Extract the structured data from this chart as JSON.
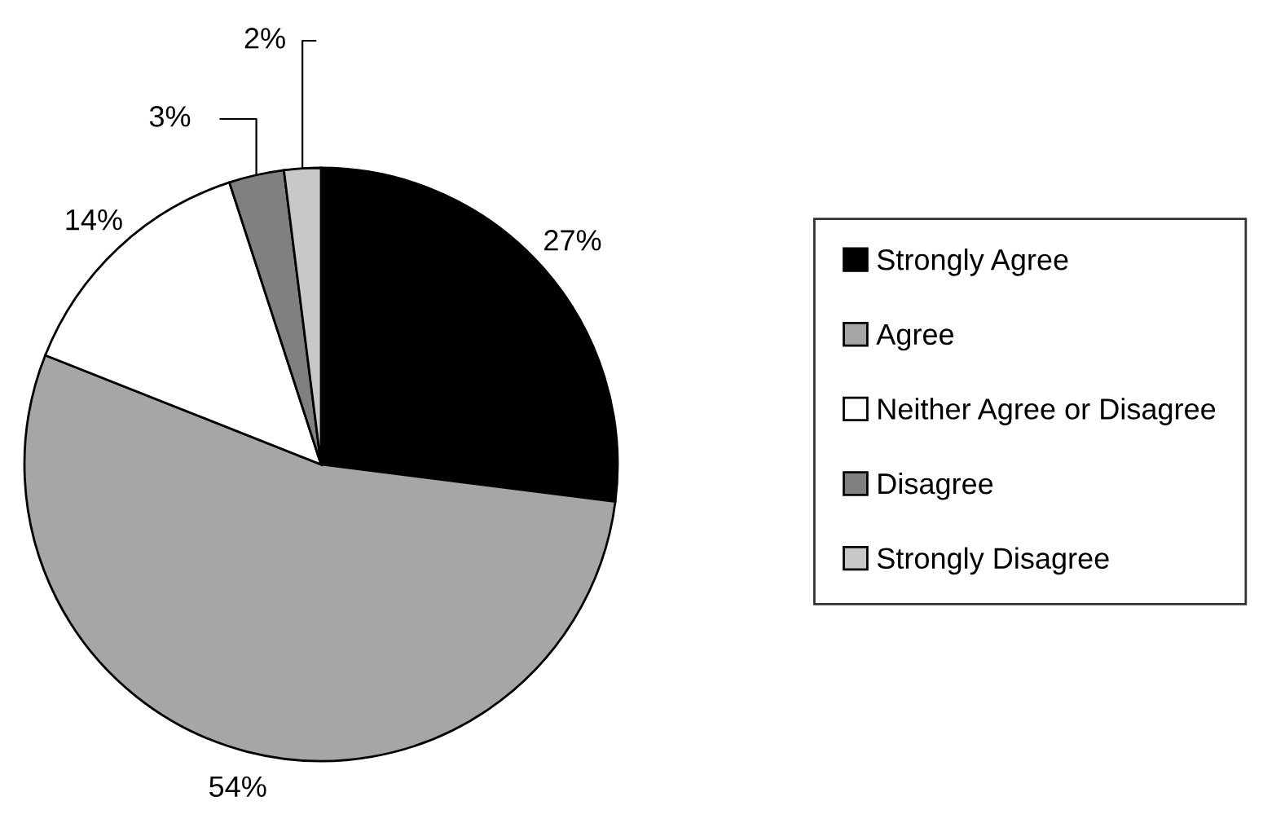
{
  "chart_data": {
    "type": "pie",
    "categories": [
      "Strongly Agree",
      "Agree",
      "Neither Agree or Disagree",
      "Disagree",
      "Strongly Disagree"
    ],
    "values": [
      27,
      54,
      14,
      3,
      2
    ],
    "colors": [
      "#000000",
      "#a6a6a6",
      "#ffffff",
      "#808080",
      "#c8c8c8"
    ],
    "value_labels": [
      "27%",
      "54%",
      "14%",
      "3%",
      "2%"
    ],
    "legend": "right"
  }
}
